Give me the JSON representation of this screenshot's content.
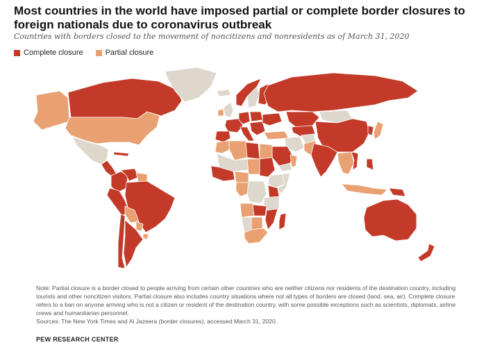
{
  "title": "Most countries in the world have imposed partial or complete border closures to foreign nationals due to coronavirus outbreak",
  "subtitle": "Countries with borders closed to the movement of noncitizens and nonresidents as of March 31, 2020",
  "legend": {
    "complete_label": "Complete closure",
    "partial_label": "Partial closure"
  },
  "colors": {
    "complete": "#c33a28",
    "partial": "#e9a072",
    "none": "#ddd8cb",
    "border": "#ffffff"
  },
  "notes": {
    "note": "Note: Partial closure is a border closed to people arriving from certain other countries who are neither citizens nor residents of the destination country, including tourists and other noncitizen visitors. Partial closure also includes country situations where not all types of borders are closed (land, sea, air). Complete closure refers to a ban on anyone arriving who is not a citizen or resident of the destination country, with some possible exceptions such as scientists, diplomats, airline crews and humanitarian personnel.",
    "sources": "Sources: The New York Times and Al Jazeera (border closures), accessed March 31, 2020."
  },
  "brand": "PEW RESEARCH CENTER",
  "regions": [
    {
      "name": "Canada",
      "status": "complete"
    },
    {
      "name": "Alaska",
      "status": "partial"
    },
    {
      "name": "Greenland",
      "status": "none"
    },
    {
      "name": "United States",
      "status": "partial"
    },
    {
      "name": "Mexico",
      "status": "none"
    },
    {
      "name": "Central America",
      "status": "complete"
    },
    {
      "name": "Cuba",
      "status": "complete"
    },
    {
      "name": "Colombia",
      "status": "complete"
    },
    {
      "name": "Venezuela",
      "status": "complete"
    },
    {
      "name": "Guyana",
      "status": "partial"
    },
    {
      "name": "Brazil",
      "status": "complete"
    },
    {
      "name": "Peru",
      "status": "complete"
    },
    {
      "name": "Bolivia",
      "status": "partial"
    },
    {
      "name": "Paraguay",
      "status": "partial"
    },
    {
      "name": "Chile",
      "status": "complete"
    },
    {
      "name": "Argentina",
      "status": "complete"
    },
    {
      "name": "Uruguay",
      "status": "partial"
    },
    {
      "name": "Iceland",
      "status": "none"
    },
    {
      "name": "Norway",
      "status": "complete"
    },
    {
      "name": "Sweden",
      "status": "none"
    },
    {
      "name": "Finland",
      "status": "complete"
    },
    {
      "name": "United Kingdom",
      "status": "none"
    },
    {
      "name": "Ireland",
      "status": "partial"
    },
    {
      "name": "Spain",
      "status": "complete"
    },
    {
      "name": "France",
      "status": "complete"
    },
    {
      "name": "Germany",
      "status": "complete"
    },
    {
      "name": "Italy",
      "status": "complete"
    },
    {
      "name": "Poland",
      "status": "complete"
    },
    {
      "name": "Balkans",
      "status": "complete"
    },
    {
      "name": "Ukraine",
      "status": "complete"
    },
    {
      "name": "Turkey",
      "status": "partial"
    },
    {
      "name": "Russia",
      "status": "complete"
    },
    {
      "name": "Kazakhstan",
      "status": "complete"
    },
    {
      "name": "Mongolia",
      "status": "none"
    },
    {
      "name": "China",
      "status": "complete"
    },
    {
      "name": "Korea",
      "status": "complete"
    },
    {
      "name": "Japan",
      "status": "partial"
    },
    {
      "name": "Central Asia",
      "status": "complete"
    },
    {
      "name": "Iran",
      "status": "none"
    },
    {
      "name": "Afghanistan",
      "status": "none"
    },
    {
      "name": "Pakistan",
      "status": "partial"
    },
    {
      "name": "India",
      "status": "complete"
    },
    {
      "name": "Saudi Arabia",
      "status": "complete"
    },
    {
      "name": "Yemen",
      "status": "none"
    },
    {
      "name": "Oman",
      "status": "partial"
    },
    {
      "name": "Southeast Asia",
      "status": "partial"
    },
    {
      "name": "Vietnam",
      "status": "complete"
    },
    {
      "name": "Philippines",
      "status": "complete"
    },
    {
      "name": "Indonesia",
      "status": "partial"
    },
    {
      "name": "Papua New Guinea",
      "status": "complete"
    },
    {
      "name": "Australia",
      "status": "complete"
    },
    {
      "name": "New Zealand",
      "status": "complete"
    },
    {
      "name": "Morocco",
      "status": "partial"
    },
    {
      "name": "Algeria",
      "status": "partial"
    },
    {
      "name": "Libya",
      "status": "complete"
    },
    {
      "name": "Egypt",
      "status": "partial"
    },
    {
      "name": "Sudan",
      "status": "complete"
    },
    {
      "name": "Mali/Niger",
      "status": "none"
    },
    {
      "name": "Chad",
      "status": "partial"
    },
    {
      "name": "West Africa",
      "status": "complete"
    },
    {
      "name": "Nigeria",
      "status": "partial"
    },
    {
      "name": "Ethiopia",
      "status": "none"
    },
    {
      "name": "Somalia",
      "status": "none"
    },
    {
      "name": "Kenya",
      "status": "complete"
    },
    {
      "name": "Congo",
      "status": "partial"
    },
    {
      "name": "DR Congo",
      "status": "none"
    },
    {
      "name": "Angola",
      "status": "partial"
    },
    {
      "name": "Zambia",
      "status": "complete"
    },
    {
      "name": "Tanzania",
      "status": "none"
    },
    {
      "name": "Namibia",
      "status": "none"
    },
    {
      "name": "Botswana",
      "status": "partial"
    },
    {
      "name": "South Africa",
      "status": "partial"
    },
    {
      "name": "Mozambique",
      "status": "complete"
    },
    {
      "name": "Madagascar",
      "status": "complete"
    }
  ]
}
